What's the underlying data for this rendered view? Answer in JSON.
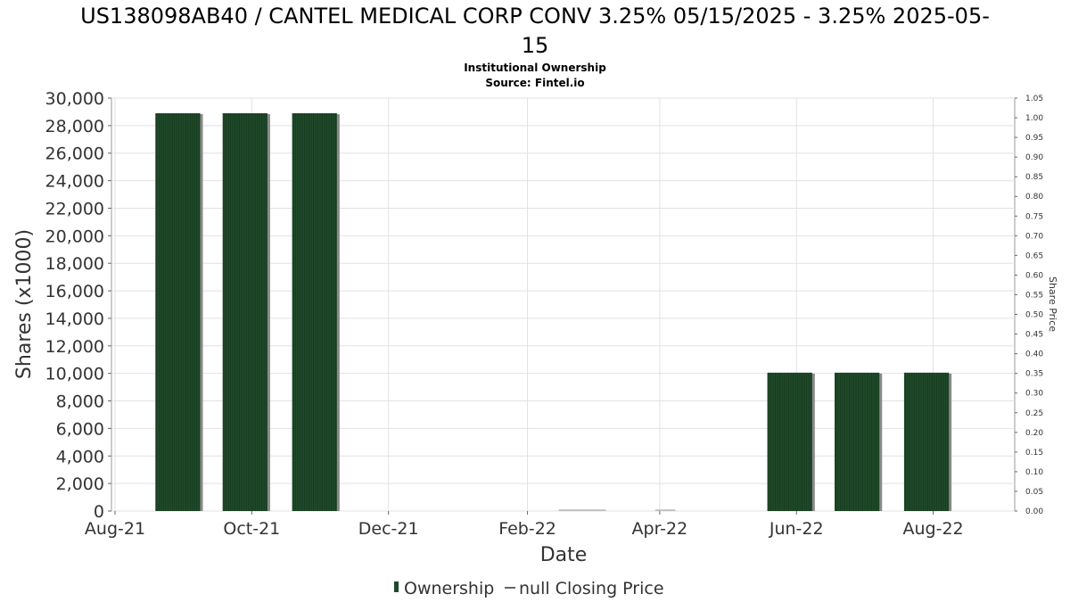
{
  "chart_data": {
    "type": "bar",
    "title": "US138098AB40 / CANTEL MEDICAL CORP CONV 3.25% 05/15/2025 - 3.25% 2025-05-15",
    "subtitle_line1": "Institutional Ownership",
    "subtitle_line2": "Source: Fintel.io",
    "xlabel": "Date",
    "ylabel": "Shares (x1000)",
    "y2label": "Share Price",
    "ylim": [
      0,
      30000
    ],
    "y2lim": [
      0,
      1.05
    ],
    "yticks": [
      "0",
      "2,000",
      "4,000",
      "6,000",
      "8,000",
      "10,000",
      "12,000",
      "14,000",
      "16,000",
      "18,000",
      "20,000",
      "22,000",
      "24,000",
      "26,000",
      "28,000",
      "30,000"
    ],
    "y2ticks": [
      "0.00",
      "0.05",
      "0.10",
      "0.15",
      "0.20",
      "0.25",
      "0.30",
      "0.35",
      "0.40",
      "0.45",
      "0.50",
      "0.55",
      "0.60",
      "0.65",
      "0.70",
      "0.75",
      "0.80",
      "0.85",
      "0.90",
      "0.95",
      "1.00",
      "1.05"
    ],
    "xlim": [
      "2021-08-01",
      "2022-08-31"
    ],
    "xticks": [
      {
        "date": "2021-08-01",
        "label": "Aug-21"
      },
      {
        "date": "2021-10-01",
        "label": "Oct-21"
      },
      {
        "date": "2021-12-01",
        "label": "Dec-21"
      },
      {
        "date": "2022-02-01",
        "label": "Feb-22"
      },
      {
        "date": "2022-04-01",
        "label": "Apr-22"
      },
      {
        "date": "2022-06-01",
        "label": "Jun-22"
      },
      {
        "date": "2022-08-01",
        "label": "Aug-22"
      }
    ],
    "grid": true,
    "legend_position": "bottom",
    "series": [
      {
        "name": "Ownership",
        "color": "#1f4a2a",
        "bars": [
          {
            "start": "2021-08-19",
            "end": "2021-09-08",
            "value": 28900
          },
          {
            "start": "2021-09-18",
            "end": "2021-10-08",
            "value": 28900
          },
          {
            "start": "2021-10-19",
            "end": "2021-11-08",
            "value": 28900
          },
          {
            "start": "2022-05-19",
            "end": "2022-06-08",
            "value": 10050
          },
          {
            "start": "2022-06-18",
            "end": "2022-07-08",
            "value": 10050
          },
          {
            "start": "2022-07-19",
            "end": "2022-08-08",
            "value": 10050
          }
        ]
      },
      {
        "name": "null Closing Price",
        "color": "#333333",
        "values": []
      }
    ]
  }
}
